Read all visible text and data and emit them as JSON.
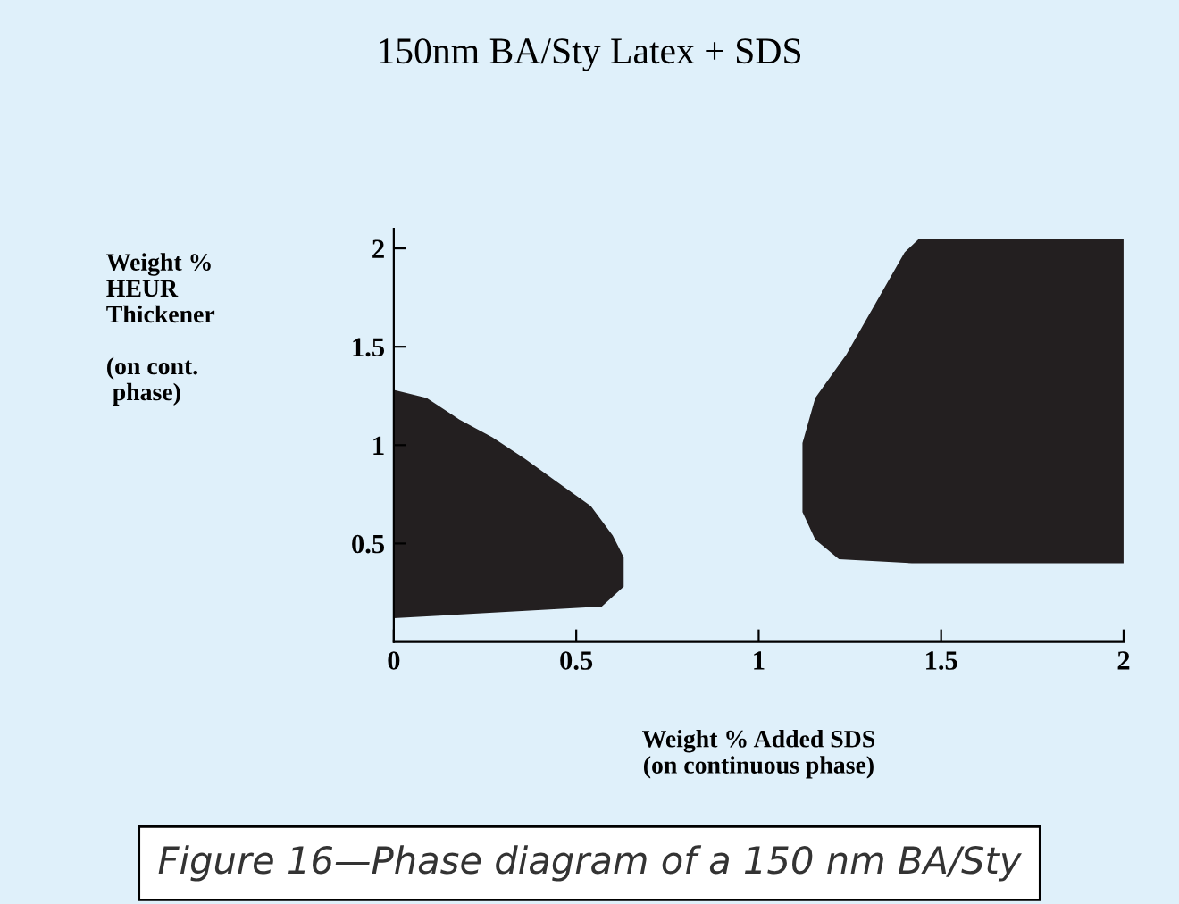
{
  "chart_data": {
    "type": "area",
    "title": "150nm BA/Sty Latex + SDS",
    "xlabel": "Weight % Added SDS\n(on continuous phase)",
    "ylabel": "Weight %\nHEUR\nThickener\n\n(on cont.\n phase)",
    "xlim": [
      0,
      2
    ],
    "ylim": [
      0,
      2.1
    ],
    "xticks": [
      0,
      0.5,
      1,
      1.5,
      2
    ],
    "yticks": [
      0.5,
      1,
      1.5,
      2
    ],
    "grid": false,
    "series": [
      {
        "color": "#231f20",
        "x": [
          0,
          0.09,
          0.18,
          0.27,
          0.36,
          0.45,
          0.54,
          0.6,
          0.63,
          0.63,
          0.57,
          0
        ],
        "values": [
          1.28,
          1.24,
          1.13,
          1.04,
          0.93,
          0.81,
          0.69,
          0.54,
          0.43,
          0.28,
          0.18,
          0.12
        ]
      },
      {
        "color": "#231f20",
        "x": [
          1.44,
          2.0,
          2.0,
          1.42,
          1.22,
          1.155,
          1.12,
          1.12,
          1.155,
          1.24,
          1.32,
          1.4
        ],
        "values": [
          2.05,
          2.05,
          0.4,
          0.4,
          0.42,
          0.52,
          0.66,
          1.01,
          1.24,
          1.46,
          1.72,
          1.98
        ]
      }
    ],
    "annotations": [
      "Figure 16—Phase diagram of a 150 nm BA/Sty"
    ]
  }
}
